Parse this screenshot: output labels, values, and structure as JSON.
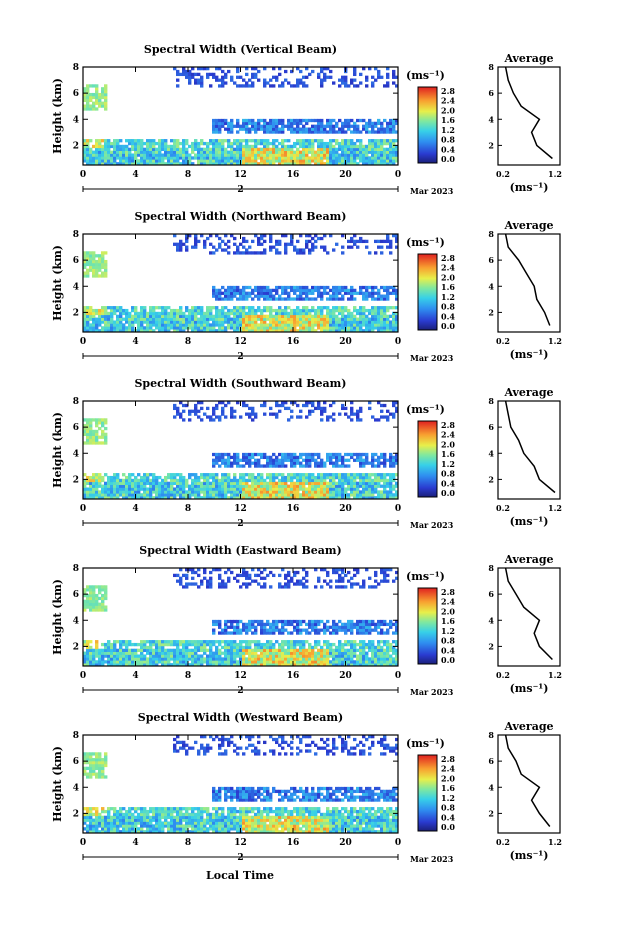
{
  "figure": {
    "bottom_xlabel": "Local Time",
    "y_label": "Height (km)",
    "date_label": "Mar 2023",
    "day_label": "2",
    "colorbar_unit": "(ms⁻¹)",
    "avg_title": "Average",
    "avg_unit": "(ms⁻¹)"
  },
  "chart_data": [
    {
      "type": "heatmap",
      "title": "Spectral Width (Vertical Beam)",
      "ylabel": "Height (km)",
      "x_ticks": [
        "0",
        "4",
        "8",
        "12",
        "16",
        "20",
        "0"
      ],
      "y_ticks": [
        "2",
        "4",
        "6",
        "8"
      ],
      "xlim": [
        0,
        24
      ],
      "ylim": [
        0.5,
        8
      ],
      "colorbar": {
        "ticks": [
          "0.0",
          "0.4",
          "0.8",
          "1.2",
          "1.6",
          "2.0",
          "2.4",
          "2.8"
        ],
        "range": [
          0,
          2.8
        ]
      },
      "average": {
        "title": "Average",
        "x_ticks": [
          "0.2",
          "1.2"
        ],
        "y_ticks": [
          "2",
          "4",
          "6",
          "8"
        ],
        "heights": [
          1,
          2,
          3,
          4,
          5,
          6,
          7,
          8
        ],
        "values": [
          1.15,
          0.85,
          0.75,
          0.9,
          0.55,
          0.4,
          0.3,
          0.25
        ]
      }
    },
    {
      "type": "heatmap",
      "title": "Spectral Width (Northward Beam)",
      "ylabel": "Height (km)",
      "x_ticks": [
        "0",
        "4",
        "8",
        "12",
        "16",
        "20",
        "0"
      ],
      "y_ticks": [
        "2",
        "4",
        "6",
        "8"
      ],
      "xlim": [
        0,
        24
      ],
      "ylim": [
        0.5,
        8
      ],
      "colorbar": {
        "ticks": [
          "0.0",
          "0.4",
          "0.8",
          "1.2",
          "1.6",
          "2.0",
          "2.4",
          "2.8"
        ],
        "range": [
          0,
          2.8
        ]
      },
      "average": {
        "title": "Average",
        "x_ticks": [
          "0.2",
          "1.2"
        ],
        "y_ticks": [
          "2",
          "4",
          "6",
          "8"
        ],
        "heights": [
          1,
          2,
          3,
          4,
          5,
          6,
          7,
          8
        ],
        "values": [
          1.1,
          1.0,
          0.85,
          0.8,
          0.65,
          0.5,
          0.3,
          0.25
        ]
      }
    },
    {
      "type": "heatmap",
      "title": "Spectral Width (Southward Beam)",
      "ylabel": "Height (km)",
      "x_ticks": [
        "0",
        "4",
        "8",
        "12",
        "16",
        "20",
        "0"
      ],
      "y_ticks": [
        "2",
        "4",
        "6",
        "8"
      ],
      "xlim": [
        0,
        24
      ],
      "ylim": [
        0.5,
        8
      ],
      "colorbar": {
        "ticks": [
          "0.0",
          "0.4",
          "0.8",
          "1.2",
          "1.6",
          "2.0",
          "2.4",
          "2.8"
        ],
        "range": [
          0,
          2.8
        ]
      },
      "average": {
        "title": "Average",
        "x_ticks": [
          "0.2",
          "1.2"
        ],
        "y_ticks": [
          "2",
          "4",
          "6",
          "8"
        ],
        "heights": [
          1,
          2,
          3,
          4,
          5,
          6,
          7,
          8
        ],
        "values": [
          1.2,
          0.9,
          0.8,
          0.6,
          0.5,
          0.35,
          0.3,
          0.25
        ]
      }
    },
    {
      "type": "heatmap",
      "title": "Spectral Width (Eastward Beam)",
      "ylabel": "Height (km)",
      "x_ticks": [
        "0",
        "4",
        "8",
        "12",
        "16",
        "20",
        "0"
      ],
      "y_ticks": [
        "2",
        "4",
        "6",
        "8"
      ],
      "xlim": [
        0,
        24
      ],
      "ylim": [
        0.5,
        8
      ],
      "colorbar": {
        "ticks": [
          "0.0",
          "0.4",
          "0.8",
          "1.2",
          "1.6",
          "2.0",
          "2.4",
          "2.8"
        ],
        "range": [
          0,
          2.8
        ]
      },
      "average": {
        "title": "Average",
        "x_ticks": [
          "0.2",
          "1.2"
        ],
        "y_ticks": [
          "2",
          "4",
          "6",
          "8"
        ],
        "heights": [
          1,
          2,
          3,
          4,
          5,
          6,
          7,
          8
        ],
        "values": [
          1.15,
          0.9,
          0.8,
          0.9,
          0.6,
          0.45,
          0.3,
          0.25
        ]
      }
    },
    {
      "type": "heatmap",
      "title": "Spectral Width (Westward Beam)",
      "ylabel": "Height (km)",
      "x_ticks": [
        "0",
        "4",
        "8",
        "12",
        "16",
        "20",
        "0"
      ],
      "y_ticks": [
        "2",
        "4",
        "6",
        "8"
      ],
      "xlim": [
        0,
        24
      ],
      "ylim": [
        0.5,
        8
      ],
      "colorbar": {
        "ticks": [
          "0.0",
          "0.4",
          "0.8",
          "1.2",
          "1.6",
          "2.0",
          "2.4",
          "2.8"
        ],
        "range": [
          0,
          2.8
        ]
      },
      "average": {
        "title": "Average",
        "x_ticks": [
          "0.2",
          "1.2"
        ],
        "y_ticks": [
          "2",
          "4",
          "6",
          "8"
        ],
        "heights": [
          1,
          2,
          3,
          4,
          5,
          6,
          7,
          8
        ],
        "values": [
          1.1,
          0.9,
          0.75,
          0.9,
          0.55,
          0.45,
          0.3,
          0.25
        ]
      }
    }
  ]
}
